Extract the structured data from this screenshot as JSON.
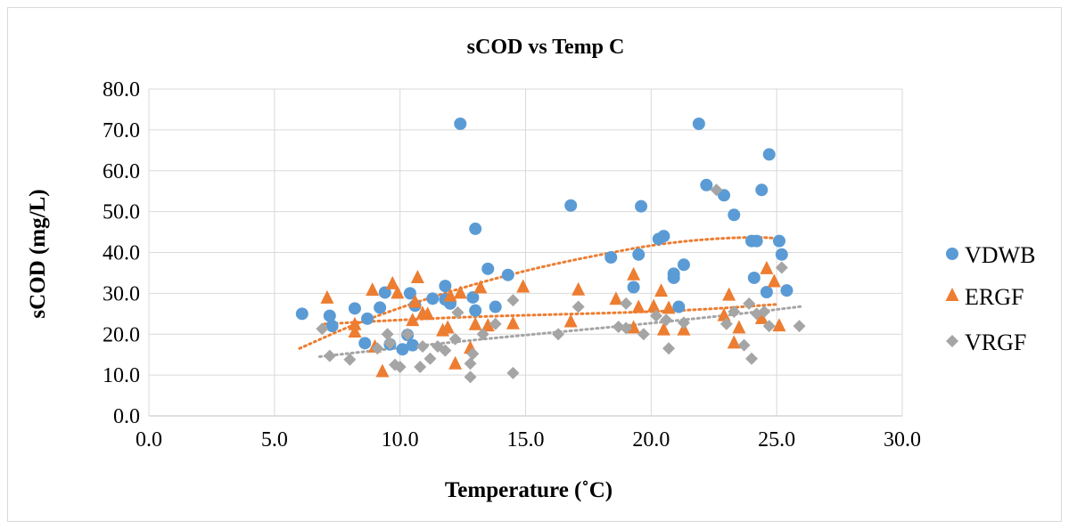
{
  "chart_data": {
    "type": "scatter",
    "title": "sCOD vs Temp C",
    "xlabel": "Temperature (˚C)",
    "ylabel": "sCOD (mg/L)",
    "xlim": [
      0,
      30
    ],
    "ylim": [
      0,
      80
    ],
    "x_ticks": [
      "0.0",
      "5.0",
      "10.0",
      "15.0",
      "20.0",
      "25.0",
      "30.0"
    ],
    "y_ticks": [
      "0.0",
      "10.0",
      "20.0",
      "30.0",
      "40.0",
      "50.0",
      "60.0",
      "70.0",
      "80.0"
    ],
    "grid": true,
    "legend_position": "right",
    "series": [
      {
        "name": "VDWB",
        "color": "#5b9bd5",
        "marker": "circle",
        "trendline": {
          "type": "polynomial",
          "color": "#ed7d31",
          "points": [
            [
              6.0,
              16.5
            ],
            [
              8.0,
              22.0
            ],
            [
              10.0,
              26.5
            ],
            [
              12.0,
              30.5
            ],
            [
              14.0,
              34.0
            ],
            [
              16.0,
              37.0
            ],
            [
              18.0,
              39.5
            ],
            [
              20.0,
              41.8
            ],
            [
              22.0,
              43.2
            ],
            [
              24.0,
              43.8
            ],
            [
              25.0,
              43.5
            ]
          ]
        },
        "points": [
          [
            6.1,
            25.0
          ],
          [
            7.2,
            24.5
          ],
          [
            7.3,
            22.0
          ],
          [
            8.2,
            26.3
          ],
          [
            8.6,
            17.8
          ],
          [
            8.7,
            23.8
          ],
          [
            9.2,
            26.5
          ],
          [
            9.4,
            30.2
          ],
          [
            9.6,
            17.5
          ],
          [
            10.1,
            16.3
          ],
          [
            10.3,
            19.8
          ],
          [
            10.4,
            30.0
          ],
          [
            10.5,
            17.3
          ],
          [
            10.6,
            27.0
          ],
          [
            11.3,
            28.7
          ],
          [
            11.8,
            28.5
          ],
          [
            11.8,
            31.8
          ],
          [
            12.0,
            27.5
          ],
          [
            12.4,
            71.5
          ],
          [
            12.9,
            29.0
          ],
          [
            13.0,
            25.8
          ],
          [
            13.0,
            45.8
          ],
          [
            13.5,
            36.0
          ],
          [
            13.8,
            26.7
          ],
          [
            14.3,
            34.5
          ],
          [
            16.8,
            51.5
          ],
          [
            18.4,
            38.8
          ],
          [
            19.3,
            31.5
          ],
          [
            19.5,
            39.5
          ],
          [
            19.6,
            51.3
          ],
          [
            20.3,
            43.3
          ],
          [
            20.5,
            44.0
          ],
          [
            20.9,
            34.8
          ],
          [
            20.9,
            33.8
          ],
          [
            21.1,
            26.7
          ],
          [
            21.3,
            37.0
          ],
          [
            21.9,
            71.5
          ],
          [
            22.2,
            56.5
          ],
          [
            22.9,
            54.0
          ],
          [
            23.3,
            49.2
          ],
          [
            24.0,
            42.8
          ],
          [
            24.1,
            33.8
          ],
          [
            24.2,
            42.8
          ],
          [
            24.4,
            55.3
          ],
          [
            24.6,
            30.3
          ],
          [
            24.7,
            64.0
          ],
          [
            25.1,
            42.8
          ],
          [
            25.2,
            39.5
          ],
          [
            25.4,
            30.7
          ]
        ]
      },
      {
        "name": "ERGF",
        "color": "#ed7d31",
        "marker": "triangle",
        "trendline": {
          "type": "polynomial",
          "color": "#ed7d31",
          "points": [
            [
              7.0,
              22.5
            ],
            [
              10.0,
              23.5
            ],
            [
              13.0,
              24.3
            ],
            [
              16.0,
              24.8
            ],
            [
              19.0,
              25.3
            ],
            [
              22.0,
              26.0
            ],
            [
              25.0,
              27.3
            ]
          ]
        },
        "points": [
          [
            7.1,
            28.8
          ],
          [
            8.2,
            22.3
          ],
          [
            8.2,
            20.5
          ],
          [
            8.9,
            30.7
          ],
          [
            9.0,
            16.8
          ],
          [
            9.3,
            10.8
          ],
          [
            9.7,
            32.3
          ],
          [
            9.9,
            30.0
          ],
          [
            10.5,
            23.3
          ],
          [
            10.6,
            27.8
          ],
          [
            10.7,
            33.8
          ],
          [
            10.9,
            25.0
          ],
          [
            11.1,
            24.8
          ],
          [
            11.7,
            20.8
          ],
          [
            11.9,
            21.5
          ],
          [
            12.0,
            29.3
          ],
          [
            12.2,
            12.7
          ],
          [
            12.4,
            30.0
          ],
          [
            12.8,
            16.5
          ],
          [
            13.0,
            22.3
          ],
          [
            13.2,
            31.3
          ],
          [
            13.5,
            22.0
          ],
          [
            14.5,
            22.5
          ],
          [
            14.9,
            31.5
          ],
          [
            16.8,
            23.0
          ],
          [
            17.1,
            30.8
          ],
          [
            18.6,
            28.5
          ],
          [
            19.3,
            21.5
          ],
          [
            19.3,
            34.5
          ],
          [
            19.5,
            26.5
          ],
          [
            20.1,
            26.7
          ],
          [
            20.4,
            30.5
          ],
          [
            20.5,
            21.0
          ],
          [
            20.7,
            26.3
          ],
          [
            21.3,
            21.0
          ],
          [
            22.9,
            24.5
          ],
          [
            23.1,
            29.5
          ],
          [
            23.3,
            17.8
          ],
          [
            23.5,
            21.5
          ],
          [
            24.4,
            23.8
          ],
          [
            24.6,
            36.0
          ],
          [
            24.9,
            32.8
          ],
          [
            25.1,
            22.0
          ]
        ]
      },
      {
        "name": "VRGF",
        "color": "#a5a5a5",
        "marker": "diamond",
        "trendline": {
          "type": "polynomial",
          "color": "#a5a5a5",
          "points": [
            [
              6.8,
              14.5
            ],
            [
              9.0,
              16.0
            ],
            [
              12.0,
              18.0
            ],
            [
              15.0,
              19.8
            ],
            [
              18.0,
              21.5
            ],
            [
              21.0,
              23.3
            ],
            [
              24.0,
              25.3
            ],
            [
              26.0,
              26.8
            ]
          ]
        },
        "points": [
          [
            6.9,
            21.3
          ],
          [
            7.2,
            14.7
          ],
          [
            8.0,
            13.8
          ],
          [
            9.1,
            16.5
          ],
          [
            9.5,
            20.0
          ],
          [
            9.6,
            17.8
          ],
          [
            9.8,
            12.5
          ],
          [
            10.0,
            12.0
          ],
          [
            10.3,
            20.0
          ],
          [
            10.8,
            12.0
          ],
          [
            10.9,
            17.0
          ],
          [
            11.2,
            14.0
          ],
          [
            11.5,
            17.0
          ],
          [
            11.8,
            16.0
          ],
          [
            12.2,
            18.8
          ],
          [
            12.3,
            25.3
          ],
          [
            12.8,
            9.5
          ],
          [
            12.8,
            12.8
          ],
          [
            12.9,
            15.2
          ],
          [
            13.3,
            20.0
          ],
          [
            13.8,
            22.5
          ],
          [
            14.5,
            10.5
          ],
          [
            14.5,
            28.3
          ],
          [
            16.3,
            20.0
          ],
          [
            17.1,
            26.7
          ],
          [
            18.7,
            21.8
          ],
          [
            19.0,
            21.5
          ],
          [
            19.0,
            27.5
          ],
          [
            19.7,
            20.0
          ],
          [
            20.2,
            24.5
          ],
          [
            20.6,
            23.5
          ],
          [
            20.7,
            16.5
          ],
          [
            21.3,
            22.8
          ],
          [
            22.6,
            55.3
          ],
          [
            23.0,
            22.5
          ],
          [
            23.3,
            25.5
          ],
          [
            23.7,
            17.3
          ],
          [
            23.9,
            27.5
          ],
          [
            24.0,
            14.0
          ],
          [
            24.2,
            25.0
          ],
          [
            24.5,
            25.5
          ],
          [
            24.7,
            22.0
          ],
          [
            25.2,
            36.3
          ],
          [
            25.9,
            22.0
          ]
        ]
      }
    ]
  }
}
